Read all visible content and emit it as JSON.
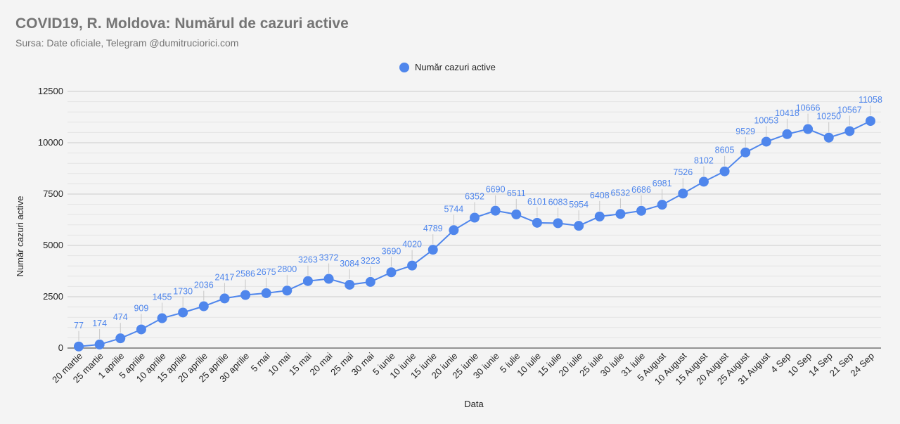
{
  "header": {
    "title": "COVID19, R. Moldova: Numărul de cazuri active",
    "subtitle": "Sursa: Date oficiale, Telegram @dumitruciorici.com"
  },
  "legend": {
    "label": "Număr cazuri active",
    "position": "top-center"
  },
  "colors": {
    "series": "#4f86ec",
    "grid_major": "#cccccc",
    "grid_minor": "#e4e4e4",
    "axis": "#333333",
    "background": "#f4f4f4"
  },
  "chart_data": {
    "type": "line",
    "title": "COVID19, R. Moldova: Numărul de cazuri active",
    "subtitle": "Sursa: Date oficiale, Telegram @dumitruciorici.com",
    "xlabel": "Data",
    "ylabel": "Număr cazuri active",
    "ylim": [
      0,
      12500
    ],
    "yticks": [
      0,
      2500,
      5000,
      7500,
      10000,
      12500
    ],
    "grid": true,
    "legend_position": "top",
    "categories": [
      "20 martie",
      "25 martie",
      "1 aprilie",
      "5 aprilie",
      "10 aprilie",
      "15 aprilie",
      "20 aprilie",
      "25 aprilie",
      "30 aprilie",
      "5 mai",
      "10 mai",
      "15 mai",
      "20 mai",
      "25 mai",
      "30 mai",
      "5 iunie",
      "10 iunie",
      "15 iunie",
      "20 iunie",
      "25 iunie",
      "30 iunie",
      "5 iulie",
      "10 iulie",
      "15 iulie",
      "20 iulie",
      "25 iulie",
      "30 iulie",
      "31 iulie",
      "5 August",
      "10 August",
      "15 August",
      "20 August",
      "25 August",
      "31 August",
      "4 Sep",
      "10 Sep",
      "14 Sep",
      "21 Sep",
      "24 Sep"
    ],
    "series": [
      {
        "name": "Număr cazuri active",
        "values": [
          77,
          174,
          474,
          909,
          1455,
          1730,
          2036,
          2417,
          2586,
          2675,
          2800,
          3263,
          3372,
          3084,
          3223,
          3690,
          4020,
          4789,
          5744,
          6352,
          6690,
          6511,
          6101,
          6083,
          5954,
          6408,
          6532,
          6686,
          6981,
          7526,
          8102,
          8605,
          9529,
          10053,
          10418,
          10666,
          10250,
          10567,
          11058
        ]
      }
    ]
  }
}
